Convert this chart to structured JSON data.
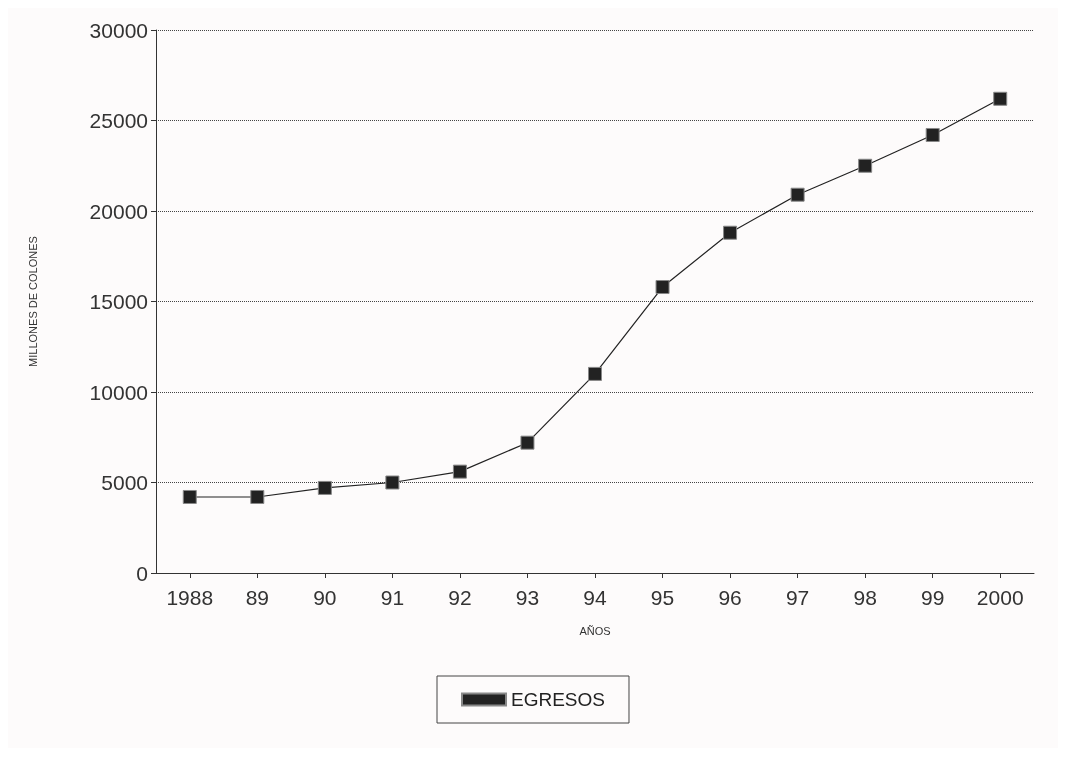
{
  "chart_data": {
    "type": "line",
    "xlabel": "AÑOS",
    "ylabel": "MILLONES DE COLONES",
    "categories": [
      "1988",
      "89",
      "90",
      "91",
      "92",
      "93",
      "94",
      "95",
      "96",
      "97",
      "98",
      "99",
      "2000"
    ],
    "series": [
      {
        "name": "EGRESOS",
        "color": "#222222",
        "values": [
          4200,
          4200,
          4700,
          5000,
          5600,
          7200,
          11000,
          15800,
          18800,
          20900,
          22500,
          24200,
          26200
        ]
      }
    ],
    "ylim": [
      0,
      30000
    ],
    "yticks": [
      0,
      5000,
      10000,
      15000,
      20000,
      25000,
      30000
    ],
    "grid": "y",
    "legend": "bottom",
    "marker": "square",
    "line_style": "solid"
  }
}
